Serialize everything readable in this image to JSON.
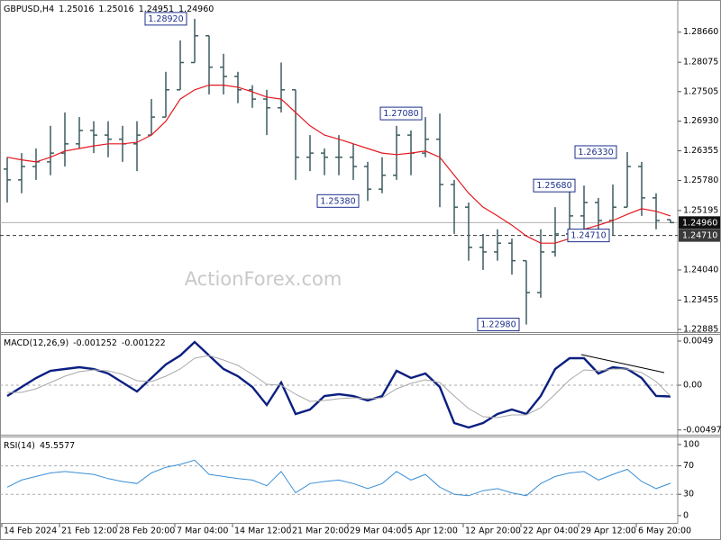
{
  "chart_data": [
    {
      "type": "ohlc",
      "title": "GBPUSD,H4",
      "watermark": "ActionForex.com",
      "color": "#3c5a60",
      "open": [
        1.26,
        1.2579,
        1.2605,
        1.2614,
        1.2631,
        1.2649,
        1.2675,
        1.2666,
        1.2658,
        1.2649,
        1.2666,
        1.2701,
        1.2754,
        1.2807,
        1.2859,
        1.2798,
        1.278,
        1.2754,
        1.2736,
        1.2719,
        1.2754,
        1.2623,
        1.2631,
        1.2623,
        1.2623,
        1.2605,
        1.2561,
        1.2588,
        1.2666,
        1.2631,
        1.2658,
        1.257,
        1.2526,
        1.2448,
        1.2439,
        1.2456,
        1.2422,
        1.236,
        1.2439,
        1.2474,
        1.2509,
        1.2535,
        1.25,
        1.2526,
        1.2605,
        1.2544,
        1.25016
      ],
      "high": [
        1.2623,
        1.2631,
        1.264,
        1.2684,
        1.271,
        1.2701,
        1.2693,
        1.2693,
        1.2684,
        1.2693,
        1.2736,
        1.2789,
        1.285,
        1.2892,
        1.2859,
        1.2824,
        1.2789,
        1.2763,
        1.2754,
        1.2807,
        1.2754,
        1.2666,
        1.264,
        1.2666,
        1.2649,
        1.2614,
        1.2623,
        1.2684,
        1.2675,
        1.2701,
        1.2708,
        1.2579,
        1.2535,
        1.2474,
        1.2483,
        1.2465,
        1.2422,
        1.2483,
        1.2526,
        1.2561,
        1.2568,
        1.2544,
        1.257,
        1.2633,
        1.2614,
        1.2553,
        1.25016
      ],
      "low": [
        1.2535,
        1.2553,
        1.2579,
        1.2588,
        1.2605,
        1.264,
        1.2631,
        1.2623,
        1.2614,
        1.2596,
        1.2666,
        1.2701,
        1.2754,
        1.2807,
        1.2745,
        1.2745,
        1.2728,
        1.2719,
        1.2666,
        1.271,
        1.2579,
        1.2596,
        1.2588,
        1.2588,
        1.2579,
        1.2538,
        1.2553,
        1.2579,
        1.2588,
        1.2623,
        1.2526,
        1.2474,
        1.2422,
        1.2404,
        1.2422,
        1.2395,
        1.2298,
        1.235,
        1.243,
        1.2465,
        1.2483,
        1.2465,
        1.2471,
        1.2526,
        1.2509,
        1.2483,
        1.24951
      ],
      "close": [
        1.2579,
        1.2605,
        1.2614,
        1.2631,
        1.2649,
        1.2675,
        1.2666,
        1.2658,
        1.2649,
        1.2666,
        1.2701,
        1.2754,
        1.2807,
        1.2859,
        1.2798,
        1.278,
        1.2754,
        1.2736,
        1.2719,
        1.2754,
        1.2623,
        1.2631,
        1.2623,
        1.2623,
        1.2605,
        1.2561,
        1.2588,
        1.2666,
        1.2631,
        1.2658,
        1.257,
        1.2526,
        1.2448,
        1.2439,
        1.2456,
        1.2422,
        1.236,
        1.2439,
        1.2474,
        1.2509,
        1.2535,
        1.25,
        1.2526,
        1.2605,
        1.2544,
        1.25,
        1.2496
      ],
      "ma": {
        "color": "#e3191f",
        "values": [
          1.2623,
          1.2618,
          1.2614,
          1.2623,
          1.2635,
          1.264,
          1.2645,
          1.2649,
          1.2649,
          1.2652,
          1.2666,
          1.2693,
          1.2736,
          1.2754,
          1.2763,
          1.2763,
          1.2759,
          1.275,
          1.274,
          1.2736,
          1.271,
          1.2684,
          1.2666,
          1.2658,
          1.2649,
          1.264,
          1.2631,
          1.2628,
          1.2631,
          1.2635,
          1.2623,
          1.2588,
          1.2553,
          1.2526,
          1.2509,
          1.2491,
          1.247,
          1.2456,
          1.2456,
          1.2465,
          1.2483,
          1.2491,
          1.25,
          1.2512,
          1.2523,
          1.2518,
          1.2509
        ]
      },
      "last_price": {
        "value": 1.2496,
        "label": "1.24960"
      },
      "level_line": {
        "value": 1.2471,
        "label": "1.24710"
      },
      "annotations": [
        {
          "value": 1.2892,
          "label": "1.28920"
        },
        {
          "value": 1.2708,
          "label": "1.27080"
        },
        {
          "value": 1.2538,
          "label": "1.25380"
        },
        {
          "value": 1.2298,
          "label": "1.22980"
        },
        {
          "value": 1.2568,
          "label": "1.25680"
        },
        {
          "value": 1.2633,
          "label": "1.26330"
        }
      ],
      "ylim": [
        1.2285,
        1.2925
      ],
      "yticks": [
        {
          "value": 1.2866,
          "label": "1.28660"
        },
        {
          "value": 1.28075,
          "label": "1.28075"
        },
        {
          "value": 1.27505,
          "label": "1.27505"
        },
        {
          "value": 1.2693,
          "label": "1.26930"
        },
        {
          "value": 1.26355,
          "label": "1.26355"
        },
        {
          "value": 1.2578,
          "label": "1.25780"
        },
        {
          "value": 1.25195,
          "label": "1.25195"
        },
        {
          "value": 1.2404,
          "label": "1.24040"
        },
        {
          "value": 1.23455,
          "label": "1.23455"
        },
        {
          "value": 1.22885,
          "label": "1.22885"
        }
      ],
      "grid": false
    },
    {
      "type": "line",
      "title": "MACD(12,26,9)",
      "series": [
        {
          "color": "#0b1f80",
          "values": [
            -0.0012,
            -0.0002,
            0.0008,
            0.0016,
            0.0018,
            0.002,
            0.0018,
            0.0013,
            0.0003,
            -0.0007,
            0.0008,
            0.0023,
            0.0033,
            0.0048,
            0.0033,
            0.0018,
            0.001,
            -0.0002,
            -0.0022,
            0.0003,
            -0.0032,
            -0.0027,
            -0.0012,
            -0.001,
            -0.0012,
            -0.0017,
            -0.0012,
            0.0016,
            0.0008,
            0.0013,
            -0.0002,
            -0.0042,
            -0.0047,
            -0.0042,
            -0.0032,
            -0.0027,
            -0.0032,
            -0.0012,
            0.0018,
            0.003,
            0.003,
            0.0013,
            0.002,
            0.0018,
            0.0008,
            -0.0012,
            -0.001252
          ]
        },
        {
          "color": "#a8a8a8",
          "values": [
            -0.0008,
            -0.0008,
            -0.0004,
            0.0003,
            0.001,
            0.0015,
            0.0017,
            0.0016,
            0.0012,
            0.0005,
            0.0004,
            0.001,
            0.0018,
            0.003,
            0.0033,
            0.0028,
            0.0022,
            0.0012,
            0.0001,
            0.0,
            -0.001,
            -0.0018,
            -0.0017,
            -0.0015,
            -0.0014,
            -0.0015,
            -0.0014,
            -0.0004,
            0.0002,
            0.0006,
            0.0003,
            -0.0012,
            -0.0026,
            -0.0035,
            -0.0036,
            -0.0033,
            -0.0033,
            -0.0025,
            -0.001,
            0.0006,
            0.0017,
            0.0016,
            0.0018,
            0.0018,
            0.0014,
            0.0004,
            -0.001222
          ]
        }
      ],
      "ylim": [
        -0.0054,
        0.0056
      ],
      "yticks": [
        0.0049,
        {
          "value": 0,
          "label": "0.00"
        },
        -0.004978
      ],
      "levels": [
        0
      ]
    },
    {
      "type": "line",
      "title": "RSI(14)",
      "series": [
        {
          "color": "#3a8fd6",
          "values": [
            40,
            50,
            55,
            60,
            62,
            60,
            58,
            52,
            48,
            45,
            60,
            68,
            72,
            78,
            58,
            55,
            52,
            50,
            42,
            62,
            32,
            45,
            48,
            50,
            45,
            38,
            45,
            62,
            50,
            58,
            40,
            30,
            28,
            35,
            38,
            32,
            28,
            45,
            55,
            60,
            62,
            50,
            58,
            65,
            48,
            38,
            45.5577
          ]
        }
      ],
      "ylim": [
        -9,
        110
      ],
      "yticks": [
        100,
        70,
        30,
        0
      ],
      "levels": [
        70,
        30
      ],
      "categories": [
        "14 Feb 2024",
        null,
        null,
        null,
        "21 Feb 12:00",
        null,
        null,
        null,
        "28 Feb 20:00",
        null,
        null,
        null,
        "7 Mar 04:00",
        null,
        null,
        null,
        "14 Mar 12:00",
        null,
        null,
        null,
        "21 Mar 20:00",
        null,
        null,
        null,
        "29 Mar 04:00",
        null,
        null,
        null,
        "5 Apr 12:00",
        null,
        null,
        null,
        "12 Apr 20:00",
        null,
        null,
        null,
        "22 Apr 04:00",
        null,
        null,
        null,
        "29 Apr 12:00",
        null,
        null,
        null,
        "6 May 20:00",
        null,
        null
      ]
    }
  ]
}
